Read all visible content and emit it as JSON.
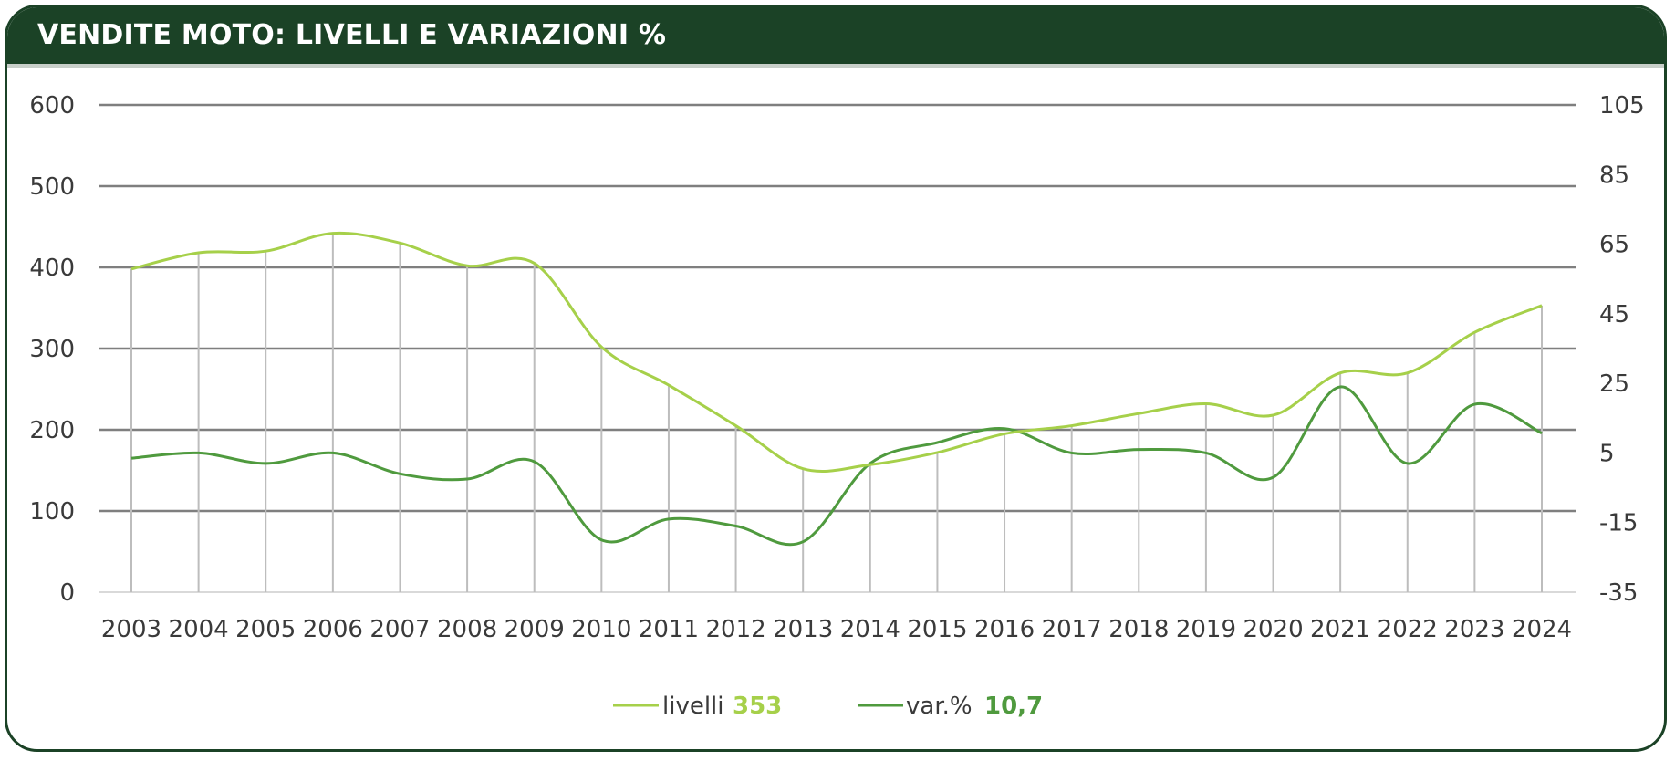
{
  "header": {
    "title": "VENDITE MOTO: LIVELLI E VARIAZIONI %"
  },
  "colors": {
    "header_bg": "#1b4226",
    "livelli": "#a6d04a",
    "var": "#4f9a3e",
    "grid": "#7f7f7f",
    "drop": "#bdbdbd"
  },
  "chart_data": {
    "type": "line",
    "title": "VENDITE MOTO: LIVELLI E VARIAZIONI %",
    "categories": [
      "2003",
      "2004",
      "2005",
      "2006",
      "2007",
      "2008",
      "2009",
      "2010",
      "2011",
      "2012",
      "2013",
      "2014",
      "2015",
      "2016",
      "2017",
      "2018",
      "2019",
      "2020",
      "2021",
      "2022",
      "2023",
      "2024"
    ],
    "left_axis": {
      "ticks": [
        "600",
        "500",
        "400",
        "300",
        "200",
        "100",
        "0"
      ],
      "min": 0,
      "max": 600
    },
    "right_axis": {
      "ticks": [
        "105",
        "85",
        "65",
        "45",
        "25",
        "5",
        "-15",
        "-35"
      ],
      "min": -35,
      "max": 105
    },
    "grid": true,
    "legend_placement": "bottom-center",
    "series": [
      {
        "name": "livelli",
        "axis": "left",
        "last_value": "353",
        "values": [
          398,
          418,
          420,
          442,
          430,
          402,
          405,
          302,
          255,
          205,
          152,
          157,
          172,
          195,
          205,
          220,
          232,
          218,
          270,
          270,
          320,
          353
        ]
      },
      {
        "name": "var.%",
        "axis": "right",
        "last_value": "10,7",
        "values": [
          3.5,
          5,
          2,
          5,
          -1,
          -2.5,
          2.5,
          -20,
          -14,
          -16,
          -20.5,
          2,
          8,
          12,
          5,
          6,
          5,
          -2,
          24,
          2,
          19,
          10.7
        ]
      }
    ]
  }
}
